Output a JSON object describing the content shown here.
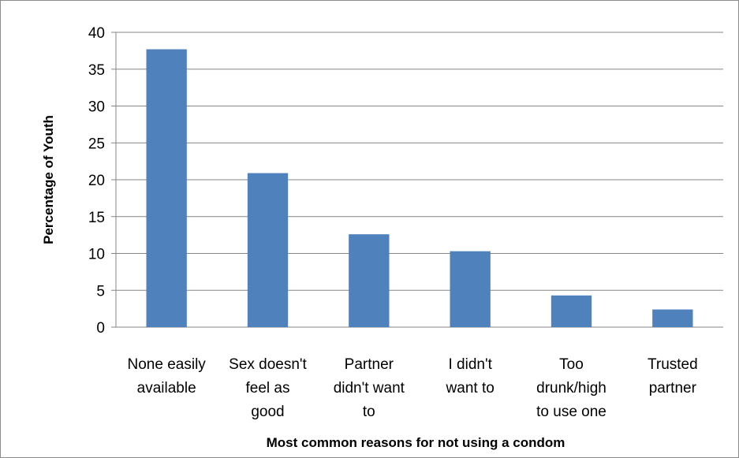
{
  "chart_data": {
    "type": "bar",
    "title": "",
    "xlabel": "Most common reasons for not using a condom",
    "ylabel": "Percentage of Youth",
    "ylim": [
      0,
      40
    ],
    "yticks": [
      0,
      5,
      10,
      15,
      20,
      25,
      30,
      35,
      40
    ],
    "grid": true,
    "legend": "none",
    "bar_color": "#4f81bd",
    "categories": [
      [
        "None easily",
        "available"
      ],
      [
        "Sex doesn't",
        "feel as",
        "good"
      ],
      [
        "Partner",
        "didn't want",
        "to"
      ],
      [
        "I didn't",
        "want to"
      ],
      [
        "Too",
        "drunk/high",
        "to use one"
      ],
      [
        "Trusted",
        "partner"
      ]
    ],
    "values": [
      37.7,
      20.9,
      12.6,
      10.3,
      4.3,
      2.4
    ]
  }
}
